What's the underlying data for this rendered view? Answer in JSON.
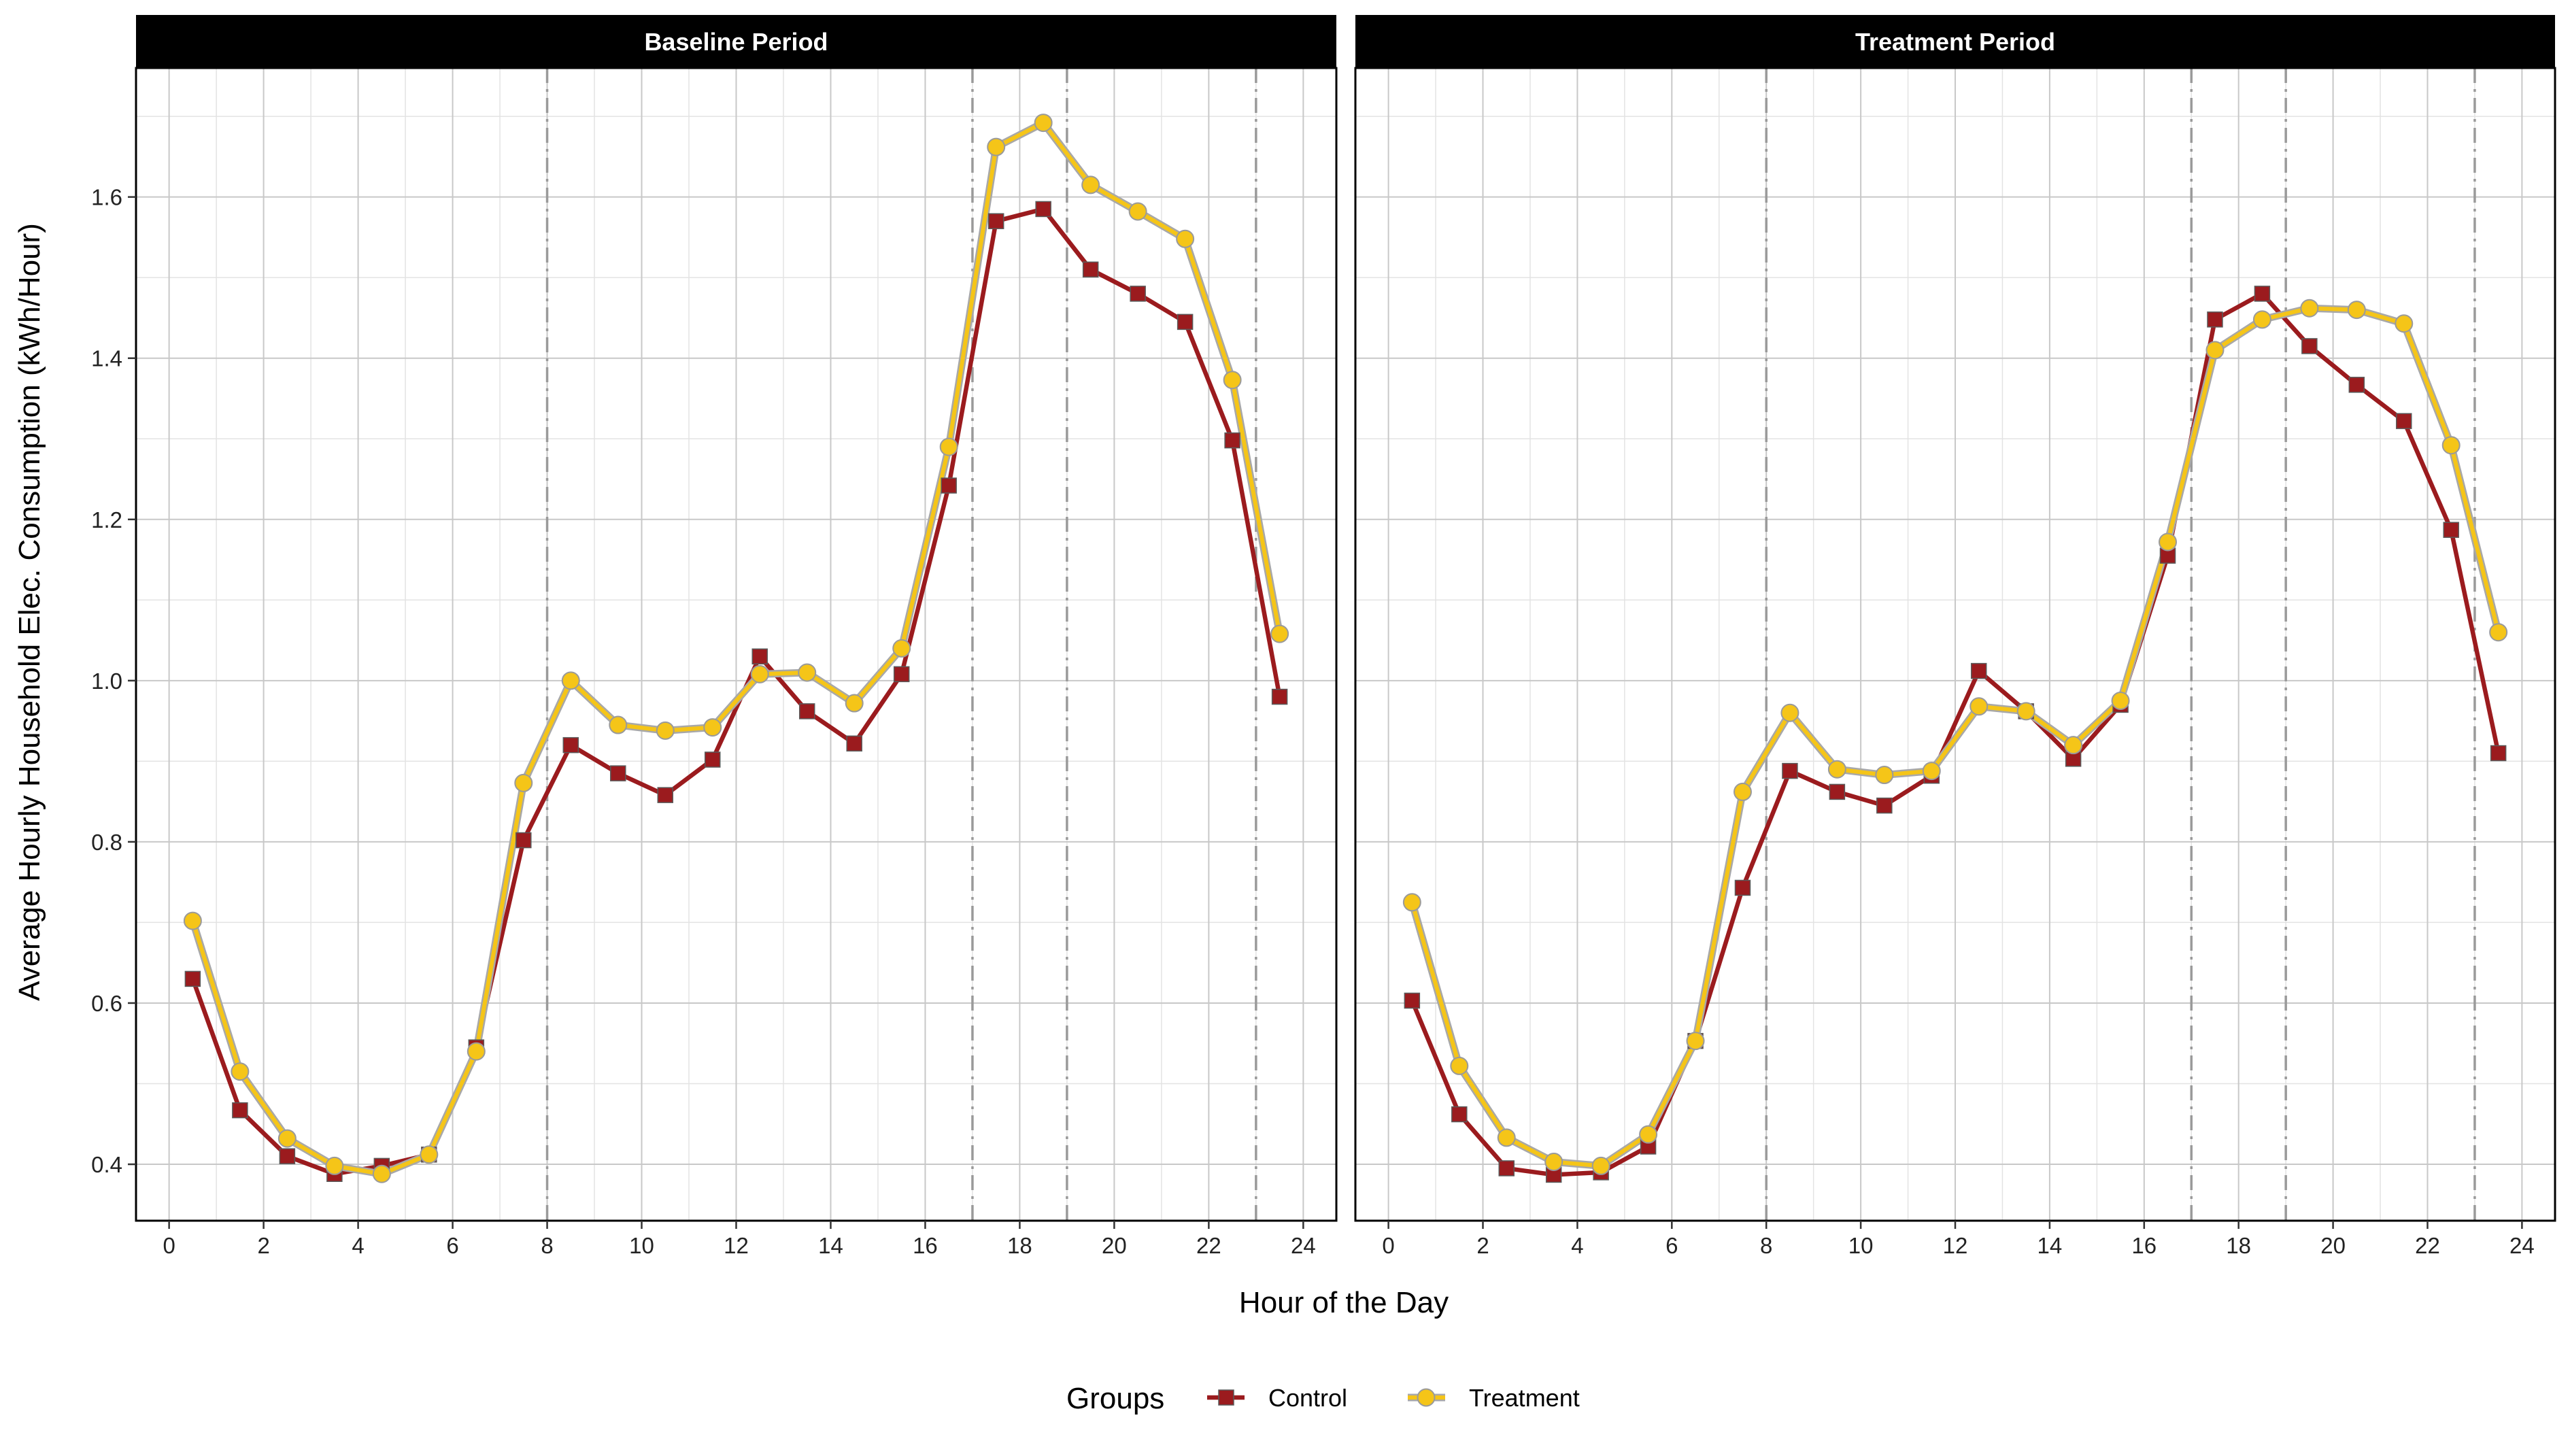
{
  "chart_data": {
    "type": "line",
    "facets": [
      "Baseline Period",
      "Treatment Period"
    ],
    "xlabel": "Hour of the Day",
    "ylabel": "Average Hourly Household Elec. Consumption  (kWh/Hour)",
    "xlim": [
      -0.7,
      24.7
    ],
    "ylim": [
      0.33,
      1.76
    ],
    "x_ticks": [
      0,
      2,
      4,
      6,
      8,
      10,
      12,
      14,
      16,
      18,
      20,
      22,
      24
    ],
    "x_tick_labels": [
      "0",
      "2",
      "4",
      "6",
      "8",
      "10",
      "12",
      "14",
      "16",
      "18",
      "20",
      "22",
      "24"
    ],
    "y_ticks": [
      0.4,
      0.6,
      0.8,
      1.0,
      1.2,
      1.4,
      1.6
    ],
    "y_tick_labels": [
      "0.4",
      "0.6",
      "0.8",
      "1.0",
      "1.2",
      "1.4",
      "1.6"
    ],
    "grid": true,
    "vlines": [
      8,
      17,
      19,
      23
    ],
    "x": [
      0.5,
      1.5,
      2.5,
      3.5,
      4.5,
      5.5,
      6.5,
      7.5,
      8.5,
      9.5,
      10.5,
      11.5,
      12.5,
      13.5,
      14.5,
      15.5,
      16.5,
      17.5,
      18.5,
      19.5,
      20.5,
      21.5,
      22.5,
      23.5
    ],
    "legend": {
      "title": "Groups",
      "position": "bottom",
      "entries": [
        "Control",
        "Treatment"
      ]
    },
    "panels": [
      {
        "facet": "Baseline Period",
        "series": [
          {
            "name": "Control",
            "color": "#9b1b1e",
            "marker": "square",
            "values": [
              0.63,
              0.467,
              0.41,
              0.388,
              0.398,
              0.412,
              0.545,
              0.802,
              0.92,
              0.885,
              0.858,
              0.902,
              1.03,
              0.962,
              0.922,
              1.008,
              1.242,
              1.57,
              1.585,
              1.51,
              1.48,
              1.445,
              1.298,
              0.98
            ]
          },
          {
            "name": "Treatment",
            "color": "#f5c518",
            "marker": "circle",
            "values": [
              0.702,
              0.515,
              0.432,
              0.398,
              0.388,
              0.412,
              0.54,
              0.873,
              1.0,
              0.945,
              0.938,
              0.942,
              1.008,
              1.01,
              0.972,
              1.04,
              1.29,
              1.662,
              1.692,
              1.615,
              1.582,
              1.548,
              1.373,
              1.058
            ]
          }
        ]
      },
      {
        "facet": "Treatment Period",
        "series": [
          {
            "name": "Control",
            "color": "#9b1b1e",
            "marker": "square",
            "values": [
              0.603,
              0.462,
              0.395,
              0.387,
              0.39,
              0.422,
              0.553,
              0.743,
              0.888,
              0.862,
              0.845,
              0.882,
              1.012,
              0.962,
              0.903,
              0.97,
              1.155,
              1.448,
              1.48,
              1.415,
              1.367,
              1.322,
              1.187,
              0.91
            ]
          },
          {
            "name": "Treatment",
            "color": "#f5c518",
            "marker": "circle",
            "values": [
              0.725,
              0.522,
              0.433,
              0.403,
              0.398,
              0.437,
              0.553,
              0.862,
              0.96,
              0.89,
              0.883,
              0.888,
              0.968,
              0.962,
              0.92,
              0.975,
              1.172,
              1.41,
              1.448,
              1.462,
              1.46,
              1.443,
              1.292,
              1.06
            ]
          }
        ]
      }
    ]
  }
}
